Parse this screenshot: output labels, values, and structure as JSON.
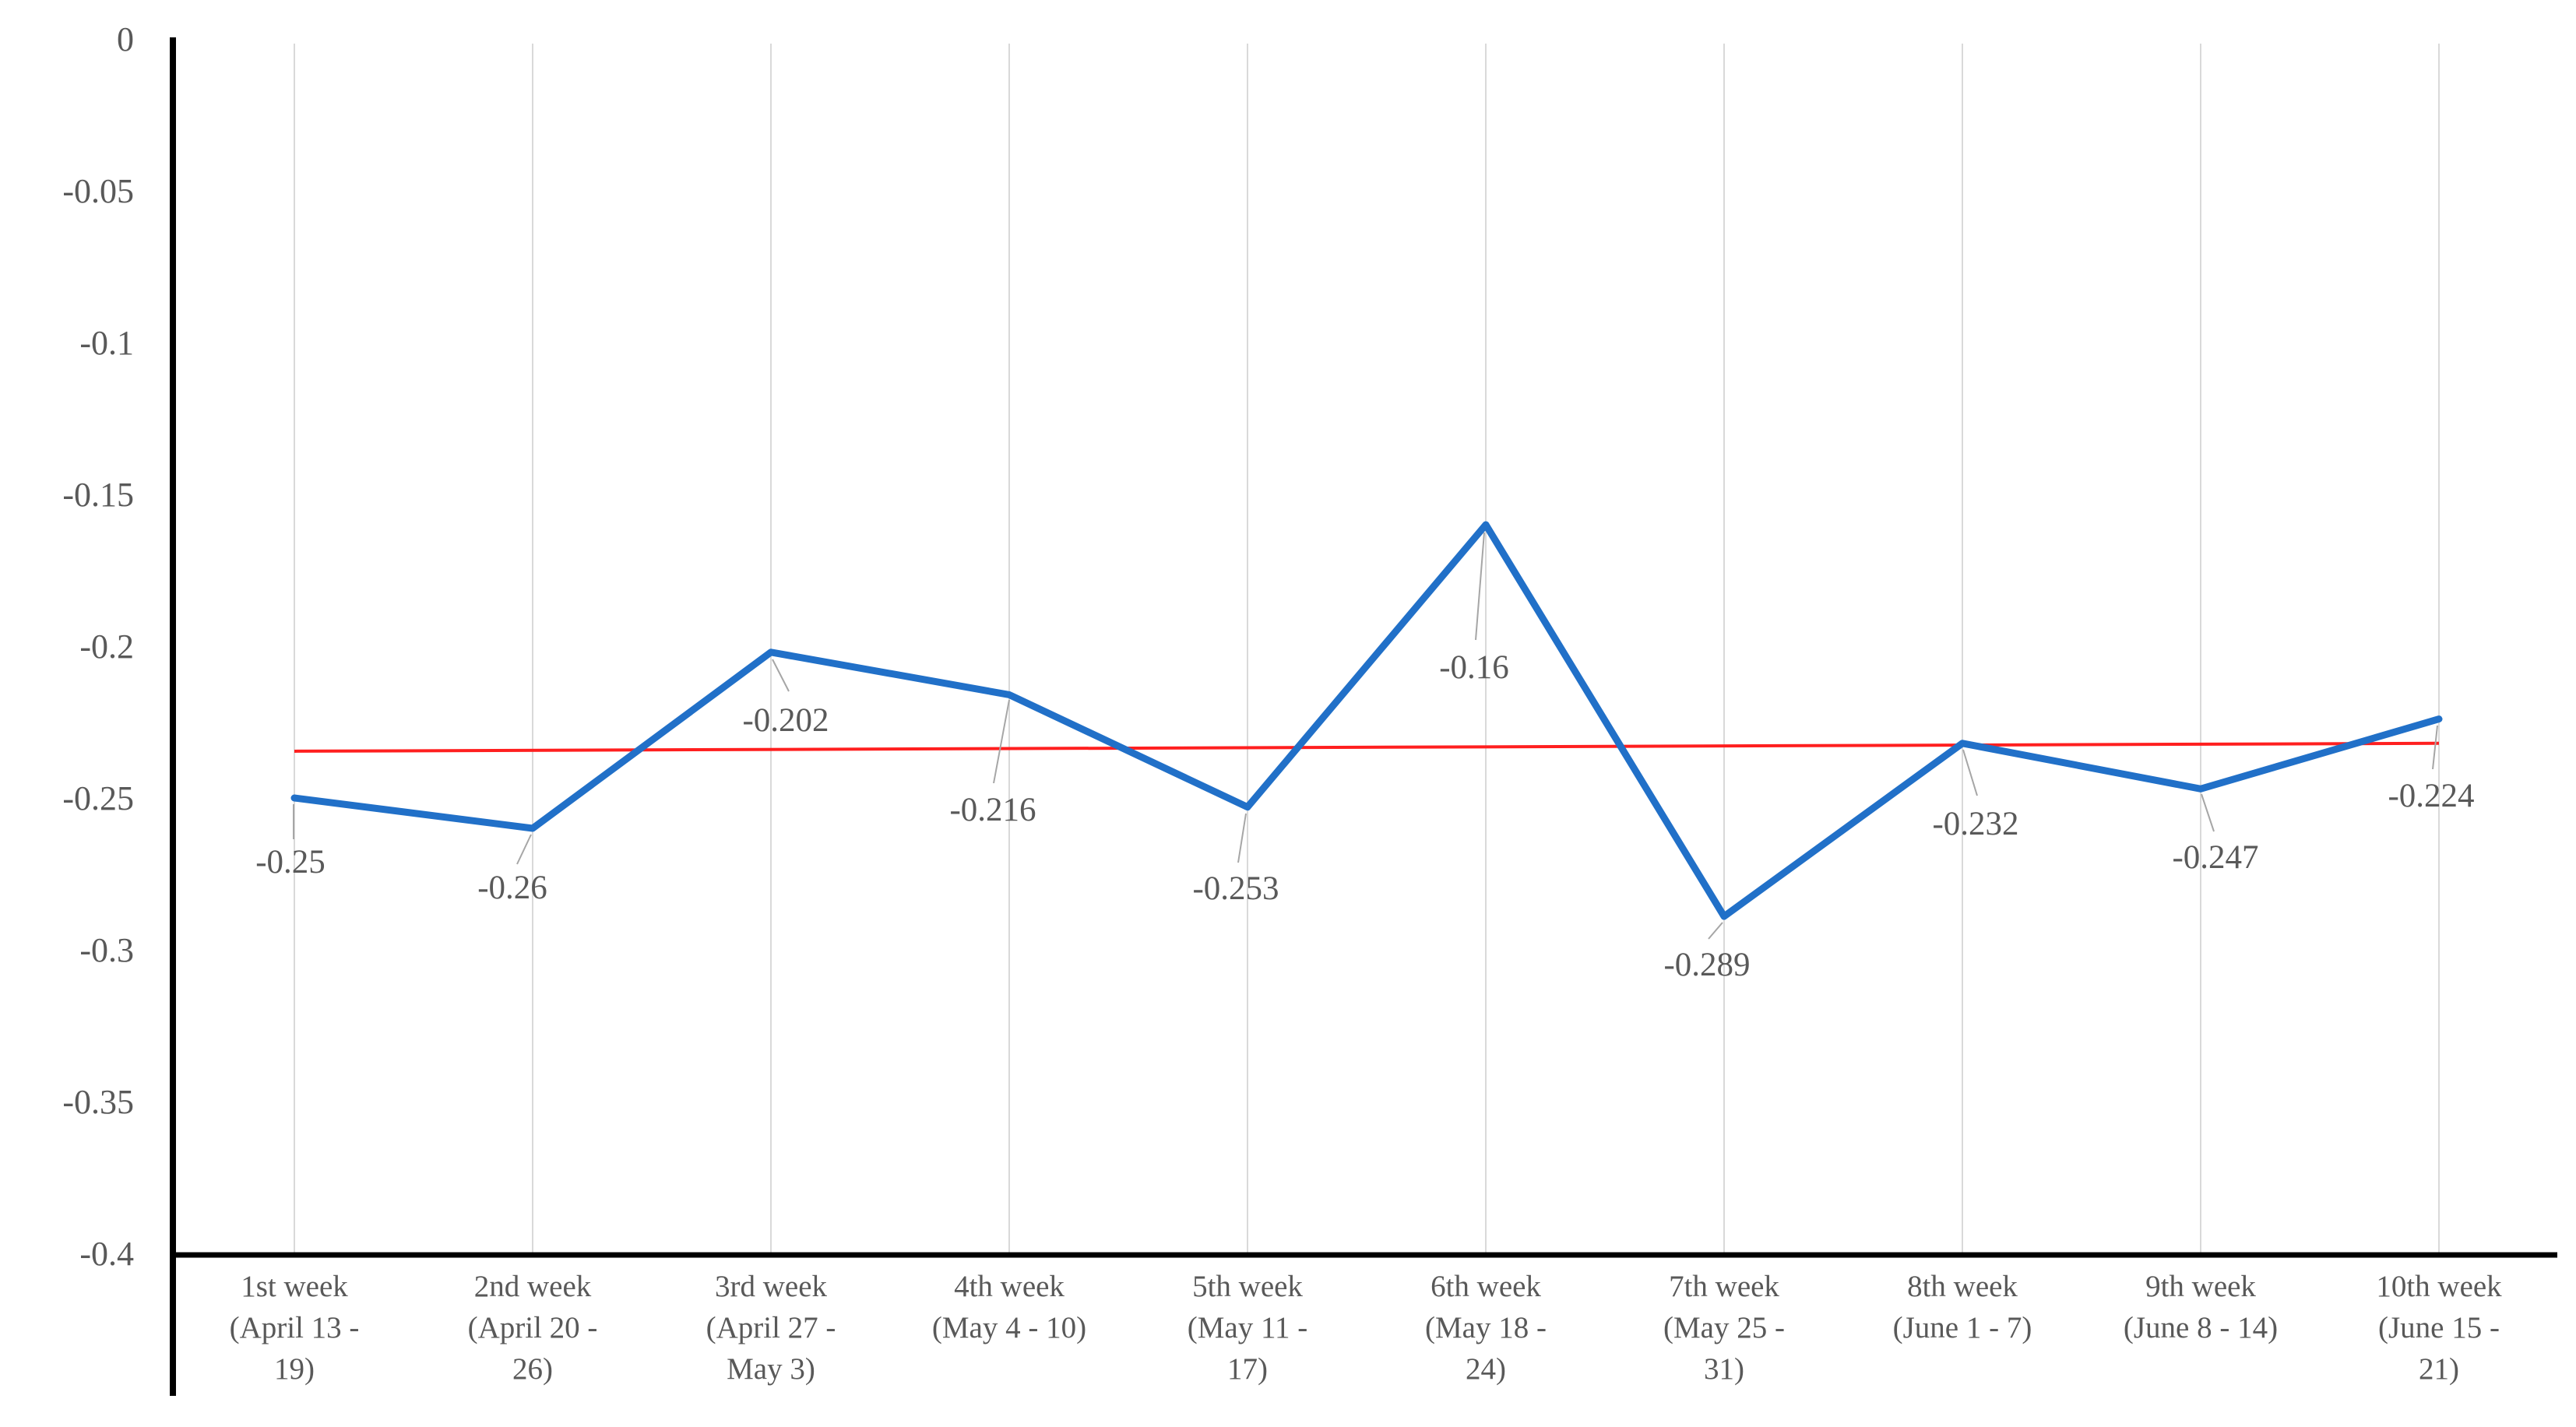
{
  "page": {
    "background": "#FFFFFF"
  },
  "chart_data": {
    "type": "line",
    "title": "",
    "legend": "none",
    "categories": [
      "1st week (April 13 - 19)",
      "2nd week (April 20 - 26)",
      "3rd week (April 27 - May 3)",
      "4th week (May 4 - 10)",
      "5th week (May 11 - 17)",
      "6th week (May 18 - 24)",
      "7th week (May 25 - 31)",
      "8th week (June 1 - 7)",
      "9th week (June 8 - 14)",
      "10th week (June 15 - 21)"
    ],
    "category_tick_lines": [
      [
        "1st week",
        "(April 13 -",
        "19)"
      ],
      [
        "2nd week",
        "(April 20 -",
        "26)"
      ],
      [
        "3rd week",
        "(April 27 -",
        "May 3)"
      ],
      [
        "4th week",
        "(May 4 - 10)"
      ],
      [
        "5th week",
        "(May 11 -",
        "17)"
      ],
      [
        "6th week",
        "(May 18 -",
        "24)"
      ],
      [
        "7th week",
        "(May 25 -",
        "31)"
      ],
      [
        "8th week",
        "(June 1 - 7)"
      ],
      [
        "9th week",
        "(June 8 - 14)"
      ],
      [
        "10th week",
        "(June 15 -",
        "21)"
      ]
    ],
    "series": [
      {
        "name": "",
        "role": "data",
        "color": "#2170C8",
        "values": [
          -0.25,
          -0.26,
          -0.202,
          -0.216,
          -0.253,
          -0.16,
          -0.289,
          -0.232,
          -0.247,
          -0.224
        ],
        "data_labels": [
          "-0.25",
          "-0.26",
          "-0.202",
          "-0.216",
          "-0.253",
          "-0.16",
          "-0.289",
          "-0.232",
          "-0.247",
          "-0.224"
        ]
      },
      {
        "name": "",
        "role": "trendline",
        "color": "#FF1F1F",
        "values": [
          -0.2346,
          -0.232
        ]
      }
    ],
    "xlabel": "",
    "ylabel": "",
    "ylim": [
      -0.4,
      0
    ],
    "ytick_step": 0.05,
    "yticks": [
      "0",
      "-0.05",
      "-0.1",
      "-0.15",
      "-0.2",
      "-0.25",
      "-0.3",
      "-0.35",
      "-0.4"
    ],
    "grid": {
      "vertical": true,
      "horizontal": false,
      "color": "#D9D9D9"
    },
    "colors": {
      "axis": "#000000",
      "tick_label": "#595959",
      "data_label": "#595959",
      "leader_line": "#A6A6A6"
    }
  }
}
